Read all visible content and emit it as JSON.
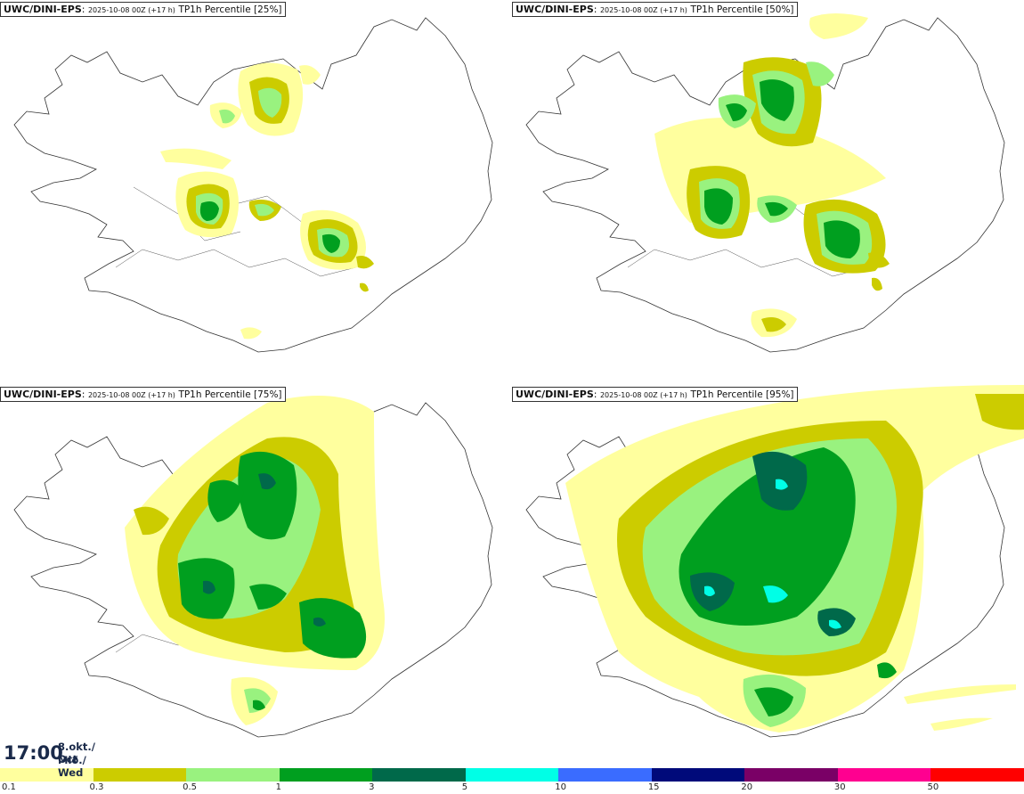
{
  "panels": [
    {
      "model": "UWC/DINI-EPS",
      "run": "2025-10-08 00Z (+17 h)",
      "product": "TP1h Percentile [25%]"
    },
    {
      "model": "UWC/DINI-EPS",
      "run": "2025-10-08 00Z (+17 h)",
      "product": "TP1h Percentile [50%]"
    },
    {
      "model": "UWC/DINI-EPS",
      "run": "2025-10-08 00Z (+17 h)",
      "product": "TP1h Percentile [75%]"
    },
    {
      "model": "UWC/DINI-EPS",
      "run": "2025-10-08 00Z (+17 h)",
      "product": "TP1h Percentile [95%]"
    }
  ],
  "valid_time": {
    "time": "17:00",
    "date_line1": "8.okt./ Oct",
    "date_line2": "Mið./ Wed"
  },
  "legend": {
    "colors": [
      "#ffff9e",
      "#cccc00",
      "#99f27f",
      "#009f1f",
      "#00694a",
      "#00ffe6",
      "#3a6cff",
      "#000a7a",
      "#7a0066",
      "#ff0090",
      "#ff0000"
    ],
    "labels": [
      "0.1",
      "0.3",
      "0.5",
      "1",
      "3",
      "5",
      "10",
      "15",
      "20",
      "30",
      "50"
    ]
  }
}
